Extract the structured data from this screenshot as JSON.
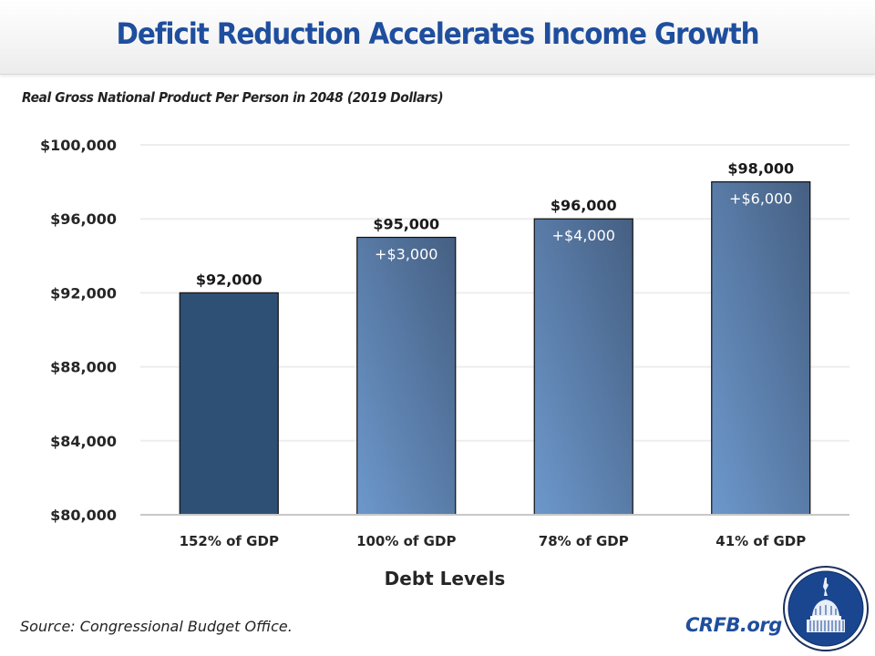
{
  "header": {
    "title": "Deficit Reduction Accelerates Income Growth"
  },
  "footer": {
    "source": "Source: Congressional Budget Office.",
    "brand": "CRFB.org",
    "logo_icon": "capitol-dome-seal-icon"
  },
  "colors": {
    "title": "#1f4e9e",
    "baseline_bar": "#2f5075",
    "gradient_bar_light": "#6d98cc",
    "gradient_bar_dark": "#455f82",
    "gridline": "#ededed",
    "axis": "#c8c8c8",
    "logo": "#1a4690"
  },
  "chart_data": {
    "type": "bar",
    "title": "Real Gross National Product Per Person in 2048 (2019 Dollars)",
    "xlabel": "Debt Levels",
    "ylabel": "",
    "categories": [
      "152% of GDP",
      "100% of GDP",
      "78% of GDP",
      "41% of GDP"
    ],
    "values": [
      92000,
      95000,
      96000,
      98000
    ],
    "value_labels": [
      "$92,000",
      "$95,000",
      "$96,000",
      "$98,000"
    ],
    "delta_labels": [
      "",
      "+$3,000",
      "+$4,000",
      "+$6,000"
    ],
    "ylim": [
      80000,
      100000
    ],
    "yticks": [
      80000,
      84000,
      88000,
      92000,
      96000,
      100000
    ],
    "ytick_labels": [
      "$80,000",
      "$84,000",
      "$88,000",
      "$92,000",
      "$96,000",
      "$100,000"
    ],
    "grid": true,
    "legend": "none"
  }
}
